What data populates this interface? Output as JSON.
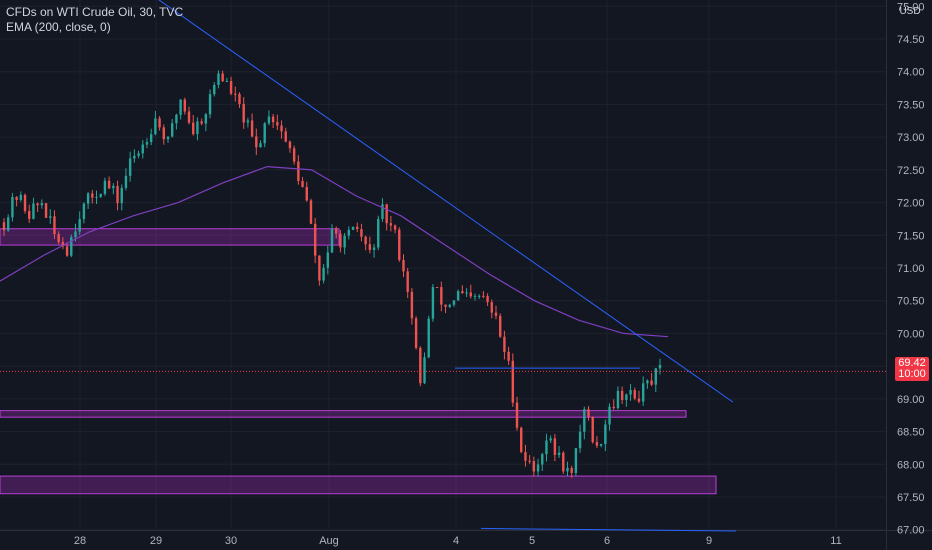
{
  "legend": {
    "symbol": "CFDs on WTI Crude Oil, 30, TVC",
    "indicator": "EMA (200, close, 0)"
  },
  "currency": "USD",
  "price_tag": {
    "price": "69.42",
    "countdown": "10:00"
  },
  "colors": {
    "background": "#131722",
    "grid": "#1e222d",
    "candle_up": "#26a69a",
    "candle_down": "#ef5350",
    "ema": "#7e3fbf",
    "trendline": "#2962ff",
    "zone_fill": "#9c27b0",
    "zone_border": "#b93fd6",
    "last_price": "#f23645"
  },
  "chart_data": {
    "type": "candlestick",
    "x_ticks": [
      "28",
      "29",
      "30",
      "Aug",
      "4",
      "5",
      "6",
      "9",
      "11"
    ],
    "y_ticks": [
      67.0,
      67.5,
      68.0,
      68.5,
      69.0,
      69.5,
      70.0,
      70.5,
      71.0,
      71.5,
      72.0,
      72.5,
      73.0,
      73.5,
      74.0,
      74.5,
      75.0
    ],
    "ylim": [
      66.95,
      75.05
    ],
    "price_path": [
      [
        "28",
        71.7
      ],
      [
        "28",
        72.1
      ],
      [
        "28",
        71.85
      ],
      [
        "28",
        72.0
      ],
      [
        "28",
        71.5
      ],
      [
        "28",
        71.3
      ],
      [
        "28",
        71.85
      ],
      [
        "29",
        72.1
      ],
      [
        "29",
        72.3
      ],
      [
        "29",
        72.05
      ],
      [
        "29",
        72.6
      ],
      [
        "29",
        72.9
      ],
      [
        "29",
        73.3
      ],
      [
        "29",
        72.9
      ],
      [
        "30",
        73.6
      ],
      [
        "30",
        73.1
      ],
      [
        "30",
        73.4
      ],
      [
        "30",
        74.0
      ],
      [
        "30",
        73.7
      ],
      [
        "30",
        73.3
      ],
      [
        "30",
        72.8
      ],
      [
        "Aug",
        73.4
      ],
      [
        "Aug",
        73.1
      ],
      [
        "Aug",
        72.6
      ],
      [
        "Aug",
        72.0
      ],
      [
        "Aug",
        70.8
      ],
      [
        "Aug",
        71.5
      ],
      [
        "Aug",
        71.4
      ],
      [
        "Aug",
        71.6
      ],
      [
        "Aug",
        71.2
      ],
      [
        "Aug",
        71.85
      ],
      [
        "Aug",
        71.5
      ],
      [
        "Aug",
        70.7
      ],
      [
        "4",
        69.2
      ],
      [
        "4",
        70.7
      ],
      [
        "4",
        70.4
      ],
      [
        "4",
        70.6
      ],
      [
        "4",
        70.5
      ],
      [
        "4",
        70.55
      ],
      [
        "4",
        70.2
      ],
      [
        "5",
        69.5
      ],
      [
        "5",
        68.2
      ],
      [
        "5",
        67.9
      ],
      [
        "5",
        68.4
      ],
      [
        "5",
        68.1
      ],
      [
        "5",
        67.8
      ],
      [
        "6",
        68.9
      ],
      [
        "6",
        68.2
      ],
      [
        "6",
        68.9
      ],
      [
        "6",
        69.1
      ],
      [
        "6",
        69.0
      ],
      [
        "6",
        69.2
      ],
      [
        "6",
        69.42
      ]
    ],
    "ema_path": [
      [
        "28",
        70.8
      ],
      [
        "28",
        71.2
      ],
      [
        "29",
        71.55
      ],
      [
        "29",
        71.8
      ],
      [
        "30",
        72.0
      ],
      [
        "30",
        72.3
      ],
      [
        "Aug",
        72.55
      ],
      [
        "Aug",
        72.5
      ],
      [
        "Aug",
        72.1
      ],
      [
        "4",
        71.8
      ],
      [
        "4",
        71.35
      ],
      [
        "5",
        70.9
      ],
      [
        "5",
        70.5
      ],
      [
        "6",
        70.2
      ],
      [
        "6",
        70.0
      ],
      [
        "6",
        69.95
      ]
    ],
    "trendline": {
      "from": [
        "29",
        75.3
      ],
      "to": [
        "9",
        68.95
      ]
    },
    "horizontal_line": {
      "from": [
        "4",
        69.47
      ],
      "to": [
        "6",
        69.47
      ]
    },
    "bottom_line": {
      "from": [
        "5",
        67.02
      ],
      "to": [
        "9",
        66.98
      ]
    },
    "zones": [
      {
        "from": [
          "28",
          71.6
        ],
        "to": [
          "Aug",
          71.35
        ]
      },
      {
        "from": [
          "28",
          68.82
        ],
        "to": [
          "6",
          68.72
        ]
      },
      {
        "from": [
          "28",
          67.82
        ],
        "to": [
          "9",
          67.55
        ]
      }
    ],
    "last_price": 69.42
  }
}
